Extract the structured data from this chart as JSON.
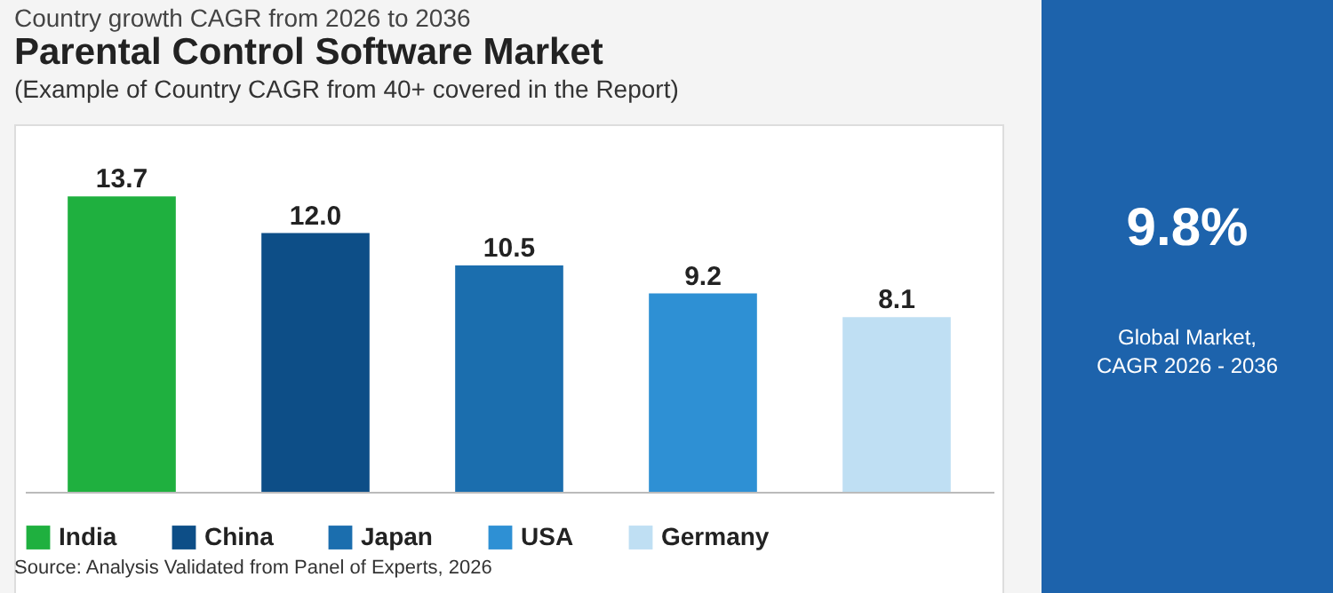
{
  "chart_data": {
    "type": "bar",
    "title": "Parental Control Software Market",
    "subtitle": "(Example of Country CAGR from 40+ covered in the Report)",
    "categories": [
      null,
      null,
      null,
      null,
      null
    ],
    "series": [
      {
        "name": "India",
        "color": "#1fb03f",
        "values": [
          13.7,
          null,
          null,
          null,
          null
        ],
        "value_labels": [
          "13.7",
          null,
          null,
          null,
          null
        ]
      },
      {
        "name": "China",
        "color": "#0d4e87",
        "values": [
          null,
          12.0,
          null,
          null,
          null
        ],
        "value_labels": [
          null,
          "12.0",
          null,
          null,
          null
        ]
      },
      {
        "name": "Japan",
        "color": "#1b6eae",
        "values": [
          null,
          null,
          10.5,
          null,
          null
        ],
        "value_labels": [
          null,
          null,
          "10.5",
          null,
          null
        ]
      },
      {
        "name": "USA",
        "color": "#2e90d4",
        "values": [
          null,
          null,
          null,
          9.2,
          null
        ],
        "value_labels": [
          null,
          null,
          null,
          "9.2",
          null
        ]
      },
      {
        "name": "Germany",
        "color": "#bfdff3",
        "values": [
          null,
          null,
          null,
          null,
          8.1
        ],
        "value_labels": [
          null,
          null,
          null,
          null,
          "8.1"
        ]
      }
    ],
    "stacked": true,
    "legend": "bottom",
    "annotations": [
      "Country growth CAGR from 2026 to 2036",
      "9.8%",
      "Global Market, CAGR 2026 - 2036",
      "Source: Analysis Validated from Panel of Experts, 2026"
    ]
  }
}
